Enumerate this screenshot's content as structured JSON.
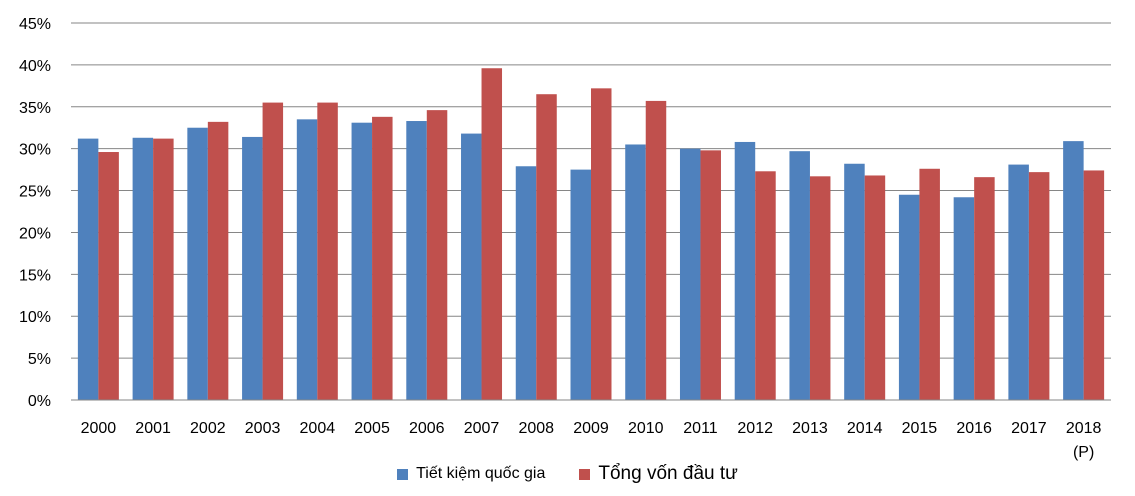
{
  "chart_data": {
    "type": "bar",
    "categories": [
      "2000",
      "2001",
      "2002",
      "2003",
      "2004",
      "2005",
      "2006",
      "2007",
      "2008",
      "2009",
      "2010",
      "2011",
      "2012",
      "2013",
      "2014",
      "2015",
      "2016",
      "2017",
      "2018"
    ],
    "category_sublabels": {
      "2018": "(P)"
    },
    "series": [
      {
        "name": "Tiết kiệm quốc gia",
        "color": "#4F81BD",
        "values": [
          31.2,
          31.3,
          32.5,
          31.4,
          33.5,
          33.1,
          33.3,
          31.8,
          27.9,
          27.5,
          30.5,
          30.0,
          30.8,
          29.7,
          28.2,
          24.5,
          24.2,
          28.1,
          30.9
        ]
      },
      {
        "name": "Tổng vốn đầu tư",
        "color": "#C0504D",
        "values": [
          29.6,
          31.2,
          33.2,
          35.5,
          35.5,
          33.8,
          34.6,
          39.6,
          36.5,
          37.2,
          35.7,
          29.8,
          27.3,
          26.7,
          26.8,
          27.6,
          26.6,
          27.2,
          27.4
        ]
      }
    ],
    "yticks": [
      "0%",
      "5%",
      "10%",
      "15%",
      "20%",
      "25%",
      "30%",
      "35%",
      "40%",
      "45%"
    ],
    "ylim": [
      0,
      45
    ],
    "grid": true,
    "legend_position": "bottom"
  }
}
